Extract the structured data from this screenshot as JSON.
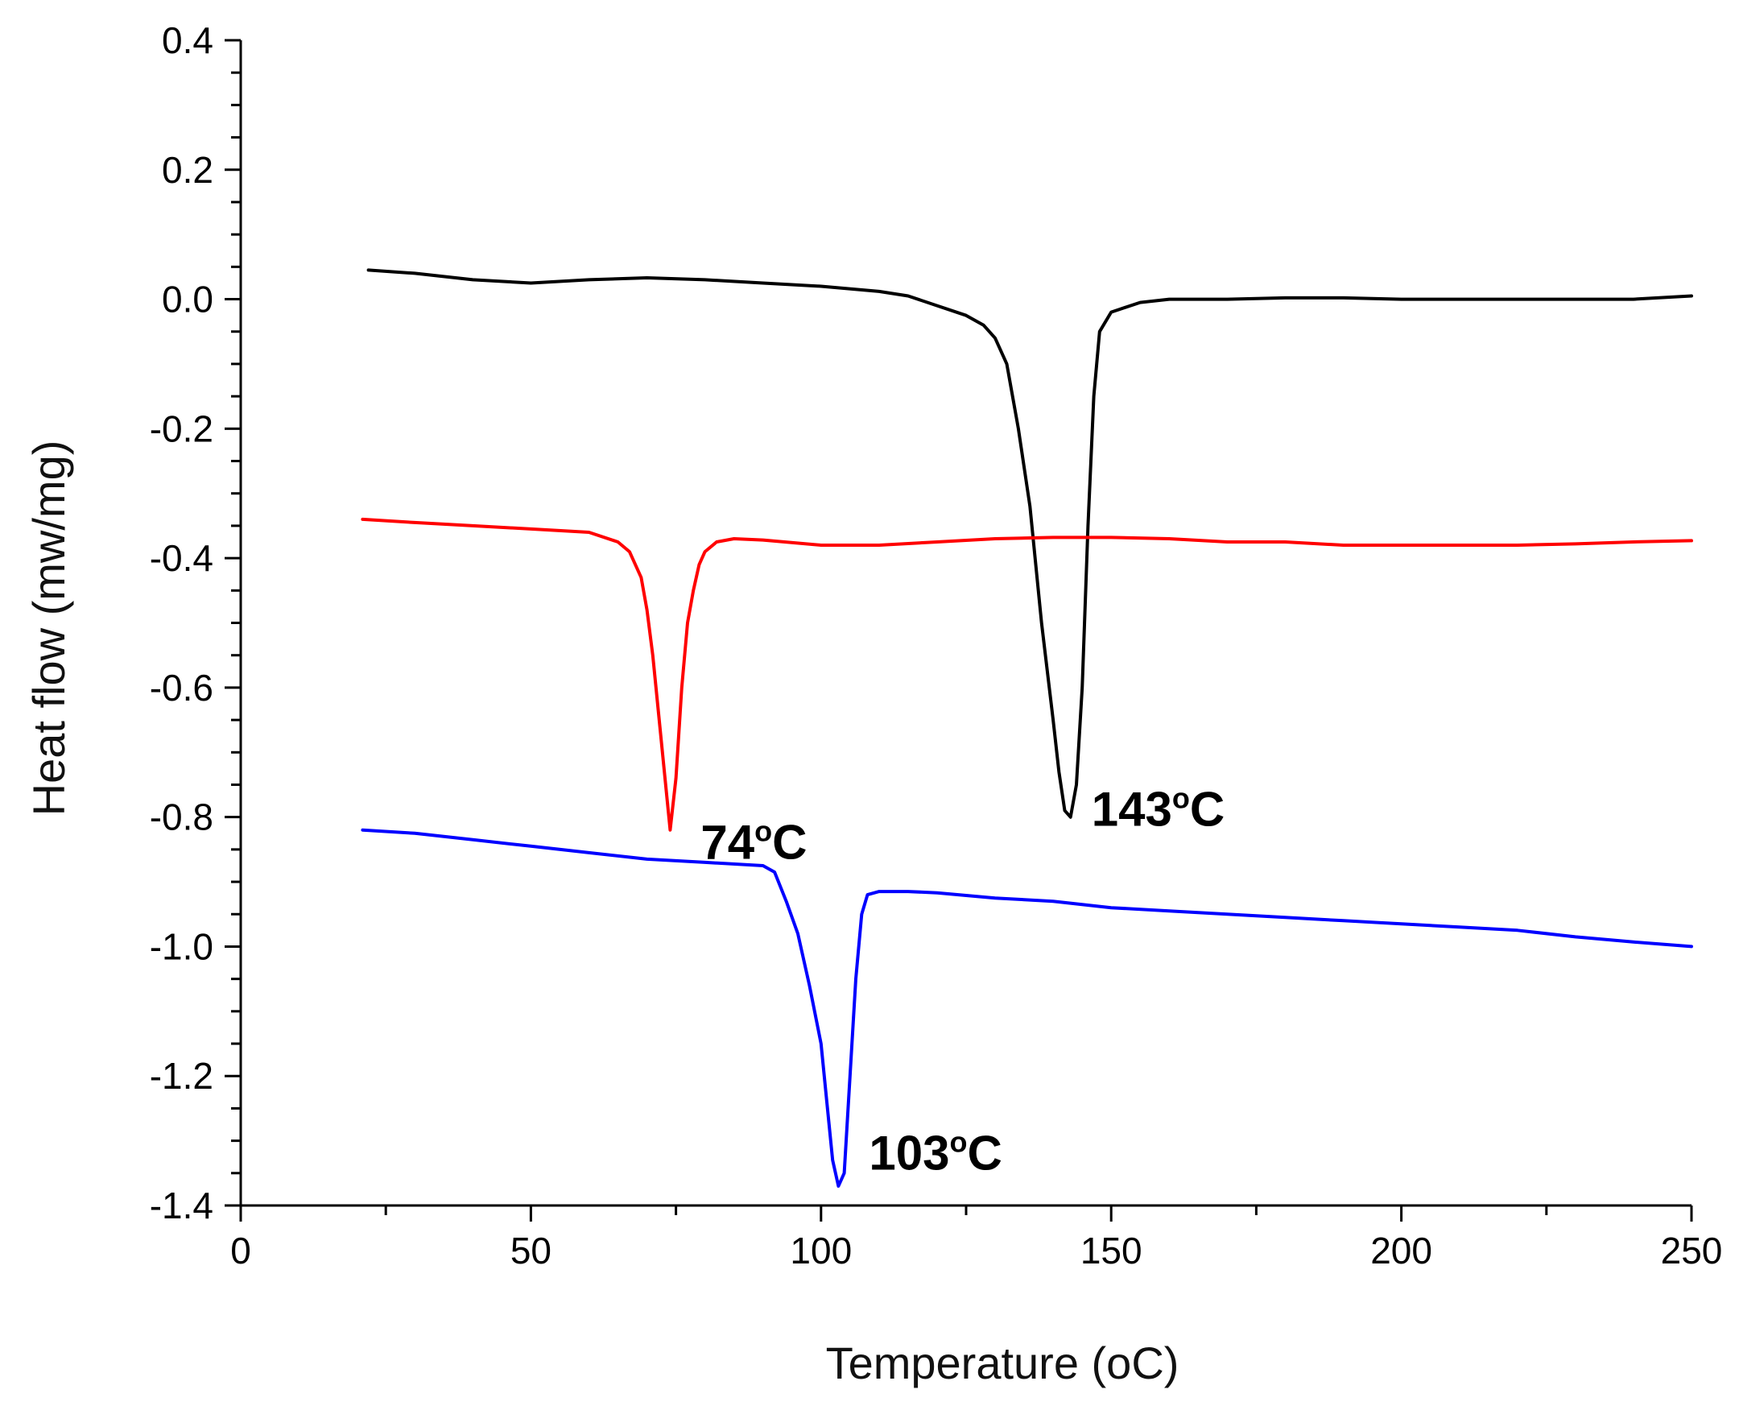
{
  "chart_data": {
    "type": "line",
    "title": "",
    "xlabel": "Temperature (oC)",
    "ylabel": "Heat flow (mw/mg)",
    "xlim": [
      0,
      250
    ],
    "ylim": [
      -1.4,
      0.4
    ],
    "x_ticks": [
      0,
      50,
      100,
      150,
      200,
      250
    ],
    "x_tick_labels": [
      "0",
      "50",
      "100",
      "150",
      "200",
      "250"
    ],
    "y_ticks": [
      0.4,
      0.2,
      0.0,
      -0.2,
      -0.4,
      -0.6,
      -0.8,
      -1.0,
      -1.2,
      -1.4
    ],
    "y_tick_labels": [
      "0.4",
      "0.2",
      "0.0",
      "-0.2",
      "-0.4",
      "-0.6",
      "-0.8",
      "-1.0",
      "-1.2",
      "-1.4"
    ],
    "grid": false,
    "series": [
      {
        "name": "black",
        "color": "#000000",
        "x": [
          22,
          30,
          40,
          50,
          60,
          70,
          80,
          90,
          100,
          110,
          115,
          120,
          125,
          128,
          130,
          132,
          134,
          136,
          138,
          140,
          141,
          142,
          143,
          144,
          145,
          146,
          147,
          148,
          150,
          155,
          160,
          170,
          180,
          190,
          200,
          210,
          220,
          230,
          240,
          250
        ],
        "y": [
          0.045,
          0.04,
          0.03,
          0.025,
          0.03,
          0.033,
          0.03,
          0.025,
          0.02,
          0.012,
          0.005,
          -0.01,
          -0.025,
          -0.04,
          -0.06,
          -0.1,
          -0.2,
          -0.32,
          -0.5,
          -0.65,
          -0.73,
          -0.79,
          -0.8,
          -0.75,
          -0.6,
          -0.35,
          -0.15,
          -0.05,
          -0.02,
          -0.005,
          0.0,
          0.0,
          0.002,
          0.002,
          0.0,
          0.0,
          0.0,
          0.0,
          0.0,
          0.005
        ]
      },
      {
        "name": "red",
        "color": "#ff0000",
        "x": [
          21,
          30,
          40,
          50,
          60,
          65,
          67,
          69,
          70,
          71,
          72,
          73,
          74,
          75,
          76,
          77,
          78,
          79,
          80,
          82,
          85,
          90,
          100,
          110,
          120,
          130,
          140,
          150,
          160,
          170,
          180,
          190,
          200,
          210,
          220,
          230,
          240,
          250
        ],
        "y": [
          -0.34,
          -0.345,
          -0.35,
          -0.355,
          -0.36,
          -0.375,
          -0.39,
          -0.43,
          -0.48,
          -0.55,
          -0.64,
          -0.73,
          -0.82,
          -0.74,
          -0.6,
          -0.5,
          -0.45,
          -0.41,
          -0.39,
          -0.375,
          -0.37,
          -0.372,
          -0.38,
          -0.38,
          -0.375,
          -0.37,
          -0.368,
          -0.368,
          -0.37,
          -0.375,
          -0.375,
          -0.38,
          -0.38,
          -0.38,
          -0.38,
          -0.378,
          -0.375,
          -0.373
        ]
      },
      {
        "name": "blue",
        "color": "#0000ff",
        "x": [
          21,
          30,
          40,
          50,
          60,
          70,
          80,
          90,
          92,
          94,
          96,
          98,
          100,
          101,
          102,
          103,
          104,
          105,
          106,
          107,
          108,
          110,
          115,
          120,
          130,
          140,
          150,
          160,
          170,
          180,
          190,
          200,
          210,
          220,
          230,
          240,
          250
        ],
        "y": [
          -0.82,
          -0.825,
          -0.835,
          -0.845,
          -0.855,
          -0.865,
          -0.87,
          -0.875,
          -0.885,
          -0.93,
          -0.98,
          -1.06,
          -1.15,
          -1.24,
          -1.33,
          -1.37,
          -1.35,
          -1.2,
          -1.05,
          -0.95,
          -0.92,
          -0.915,
          -0.915,
          -0.917,
          -0.925,
          -0.93,
          -0.94,
          -0.945,
          -0.95,
          -0.955,
          -0.96,
          -0.965,
          -0.97,
          -0.975,
          -0.985,
          -0.993,
          -1.0
        ]
      }
    ],
    "annotations": [
      {
        "text": "74oC",
        "x": 74,
        "y": -0.8,
        "color": "#000000"
      },
      {
        "text": "143oC",
        "x": 143,
        "y": -0.78,
        "color": "#000000"
      },
      {
        "text": "103oC",
        "x": 103,
        "y": -1.3,
        "color": "#000000"
      }
    ]
  }
}
